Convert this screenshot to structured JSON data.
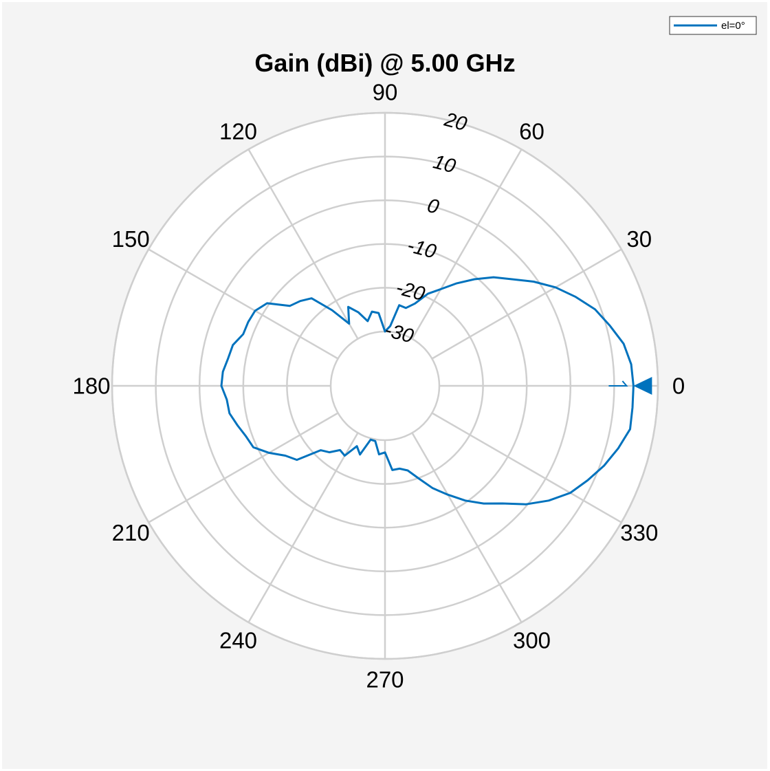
{
  "chart_data": {
    "type": "line",
    "projection": "polar",
    "title": "Gain (dBi) @ 5.00 GHz",
    "angle_unit": "deg",
    "angle_ticks": [
      0,
      30,
      60,
      90,
      120,
      150,
      180,
      210,
      240,
      270,
      300,
      330
    ],
    "angle_tick_labels": [
      "0",
      "30",
      "60",
      "90",
      "120",
      "150",
      "180",
      "210",
      "240",
      "270",
      "300",
      "330"
    ],
    "rlim": [
      -30,
      20
    ],
    "r_ticks": [
      -30,
      -20,
      -10,
      0,
      10,
      20
    ],
    "r_tick_labels": [
      "-30",
      "-20",
      "-10",
      "0",
      "10",
      "20"
    ],
    "grid": true,
    "legend_position": "top-right",
    "colors": {
      "series": "#0072bd",
      "grid": "#cfcfcf",
      "background": "#f4f4f4",
      "axes": "#ffffff"
    },
    "series": [
      {
        "name": "el=0°",
        "theta": [
          0,
          5,
          10,
          15,
          20,
          25,
          30,
          35,
          40,
          45,
          50,
          55,
          60,
          65,
          70,
          75,
          80,
          85,
          90,
          95,
          100,
          105,
          110,
          115,
          120,
          125,
          130,
          135,
          140,
          145,
          150,
          155,
          160,
          165,
          170,
          175,
          180,
          185,
          190,
          195,
          200,
          205,
          210,
          215,
          220,
          225,
          230,
          235,
          240,
          245,
          250,
          255,
          260,
          265,
          270,
          275,
          280,
          285,
          290,
          295,
          300,
          305,
          310,
          315,
          320,
          325,
          330,
          335,
          340,
          345,
          350,
          355
        ],
        "values": [
          14.4,
          14.1,
          13.0,
          10.8,
          8.7,
          5.7,
          2.6,
          -0.9,
          -4.5,
          -7.3,
          -10.6,
          -13.8,
          -16.9,
          -19.2,
          -22.4,
          -24.0,
          -23.7,
          -28.7,
          -30.0,
          -25.7,
          -25.2,
          -27.1,
          -24.5,
          -22.5,
          -26.0,
          -21.3,
          -16.3,
          -15.0,
          -14.0,
          -9.5,
          -8.1,
          -7.9,
          -7.9,
          -6.4,
          -6.0,
          -5.2,
          -5.0,
          -6.1,
          -6.3,
          -7.5,
          -8.6,
          -9.2,
          -11.8,
          -14.6,
          -16.1,
          -21.6,
          -22.6,
          -24.5,
          -24.0,
          -27.2,
          -25.7,
          -29.7,
          -29.6,
          -26.7,
          -27.2,
          -23.1,
          -23.2,
          -22.4,
          -19.9,
          -16.6,
          -13.7,
          -10.4,
          -7.3,
          -4.4,
          -0.3,
          3.3,
          6.5,
          8.7,
          10.9,
          12.8,
          14.5,
          14.4
        ]
      }
    ],
    "marker": {
      "type": "filled-triangle",
      "theta": 0,
      "label_theta": 0
    }
  }
}
